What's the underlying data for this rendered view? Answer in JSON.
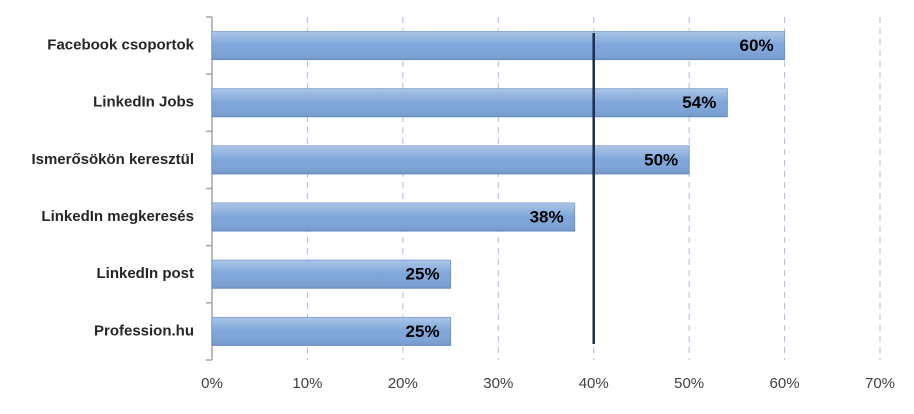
{
  "chart_data": {
    "type": "hbar",
    "categories": [
      "Facebook csoportok",
      "LinkedIn Jobs",
      "Ismerősökön keresztül",
      "LinkedIn megkeresés",
      "LinkedIn post",
      "Profession.hu"
    ],
    "values": [
      60,
      54,
      50,
      38,
      25,
      25
    ],
    "value_labels": [
      "60%",
      "54%",
      "50%",
      "38%",
      "25%",
      "25%"
    ],
    "color": "#7ea6da",
    "xlim": [
      0,
      70
    ],
    "xticks": [
      {
        "value": 0,
        "label": "0%"
      },
      {
        "value": 10,
        "label": "10%"
      },
      {
        "value": 20,
        "label": "20%"
      },
      {
        "value": 30,
        "label": "30%"
      },
      {
        "value": 40,
        "label": "40%"
      },
      {
        "value": 50,
        "label": "50%"
      },
      {
        "value": 60,
        "label": "60%"
      },
      {
        "value": 70,
        "label": "70%"
      }
    ],
    "grid": true,
    "vline": 40
  }
}
